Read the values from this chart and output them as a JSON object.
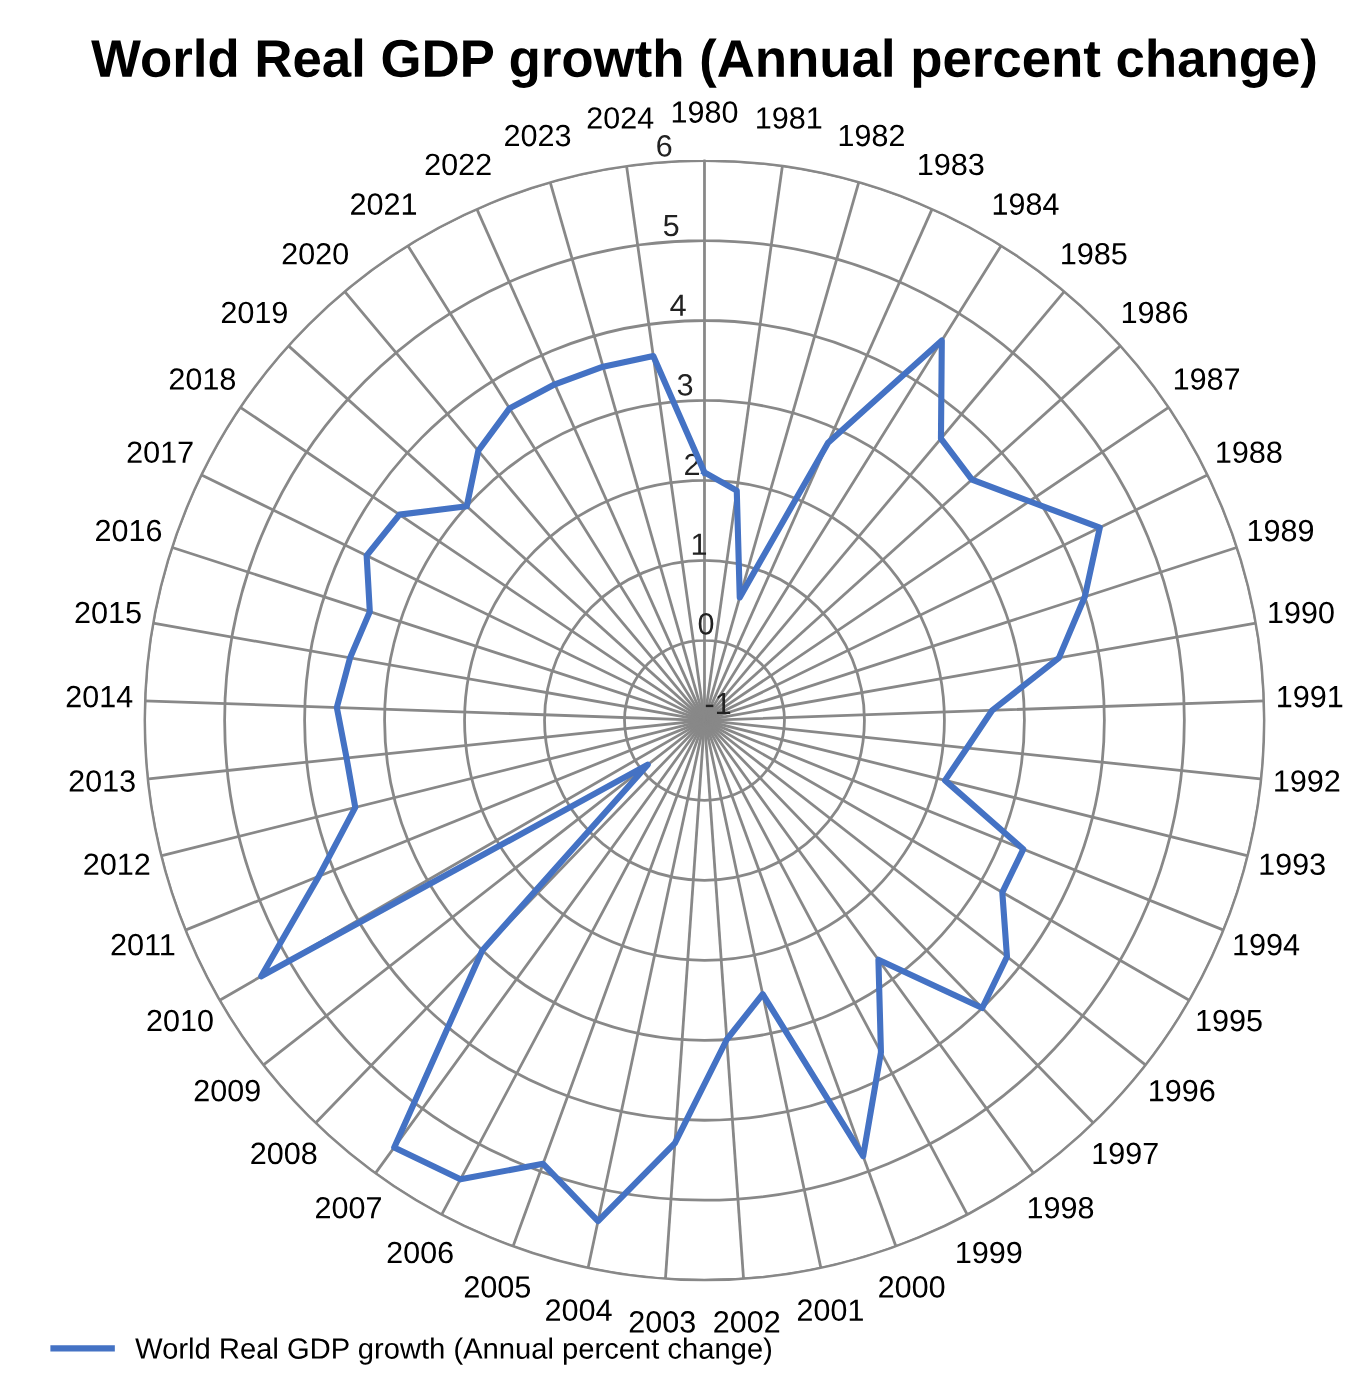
{
  "chart_data": {
    "type": "radar",
    "title": "World Real GDP growth (Annual percent change)",
    "categories": [
      "1980",
      "1981",
      "1982",
      "1983",
      "1984",
      "1985",
      "1986",
      "1987",
      "1988",
      "1989",
      "1990",
      "1991",
      "1992",
      "1993",
      "1994",
      "1995",
      "1996",
      "1997",
      "1998",
      "1999",
      "2000",
      "2001",
      "2002",
      "2003",
      "2004",
      "2005",
      "2006",
      "2007",
      "2008",
      "2009",
      "2010",
      "2011",
      "2012",
      "2013",
      "2014",
      "2015",
      "2016",
      "2017",
      "2018",
      "2019",
      "2020",
      "2021",
      "2022",
      "2023",
      "2024"
    ],
    "series": [
      {
        "name": "World Real GDP growth (Annual percent change)",
        "color": "#4472c4",
        "values": [
          2.1,
          1.9,
          0.6,
          2.8,
          4.6,
          3.6,
          3.5,
          3.9,
          4.5,
          4.0,
          3.5,
          2.6,
          2.3,
          2.1,
          3.3,
          3.3,
          3.8,
          4.0,
          2.7,
          3.7,
          4.8,
          2.5,
          3.0,
          4.3,
          5.4,
          4.9,
          5.5,
          5.6,
          3.0,
          -0.1,
          5.4,
          4.2,
          3.5,
          3.5,
          3.6,
          3.5,
          3.4,
          3.7,
          3.6,
          3.0,
          3.4,
          3.6,
          3.6,
          3.6,
          3.6
        ]
      }
    ],
    "ylim": [
      -1,
      6
    ],
    "yticks": [
      -1,
      0,
      1,
      2,
      3,
      4,
      5,
      6
    ],
    "grid": true,
    "legend": "bottom left",
    "marker": "none",
    "line_style": "solid"
  }
}
